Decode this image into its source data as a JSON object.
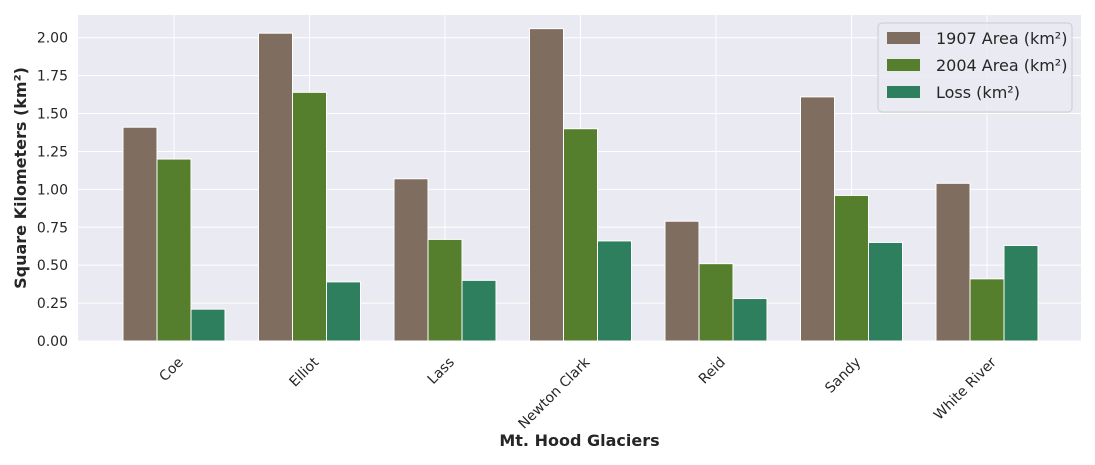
{
  "chart_data": {
    "type": "bar",
    "title": "",
    "xlabel": "Mt. Hood Glaciers",
    "ylabel": "Square Kilometers (km²)",
    "ylim": [
      0,
      2.15
    ],
    "yticks": [
      "0.00",
      "0.25",
      "0.50",
      "0.75",
      "1.00",
      "1.25",
      "1.50",
      "1.75",
      "2.00"
    ],
    "grid": true,
    "legend_position": "top-right",
    "categories": [
      "Coe",
      "Elliot",
      "Lass",
      "Newton Clark",
      "Reid",
      "Sandy",
      "White River"
    ],
    "series": [
      {
        "name": "1907 Area (km²)",
        "color": "#7f6d5f",
        "values": [
          1.41,
          2.03,
          1.07,
          2.06,
          0.79,
          1.61,
          1.04
        ]
      },
      {
        "name": "2004 Area (km²)",
        "color": "#557f2d",
        "values": [
          1.2,
          1.64,
          0.67,
          1.4,
          0.51,
          0.96,
          0.41
        ]
      },
      {
        "name": "Loss (km²)",
        "color": "#2d7f5e",
        "values": [
          0.21,
          0.39,
          0.4,
          0.66,
          0.28,
          0.65,
          0.63
        ]
      }
    ]
  }
}
